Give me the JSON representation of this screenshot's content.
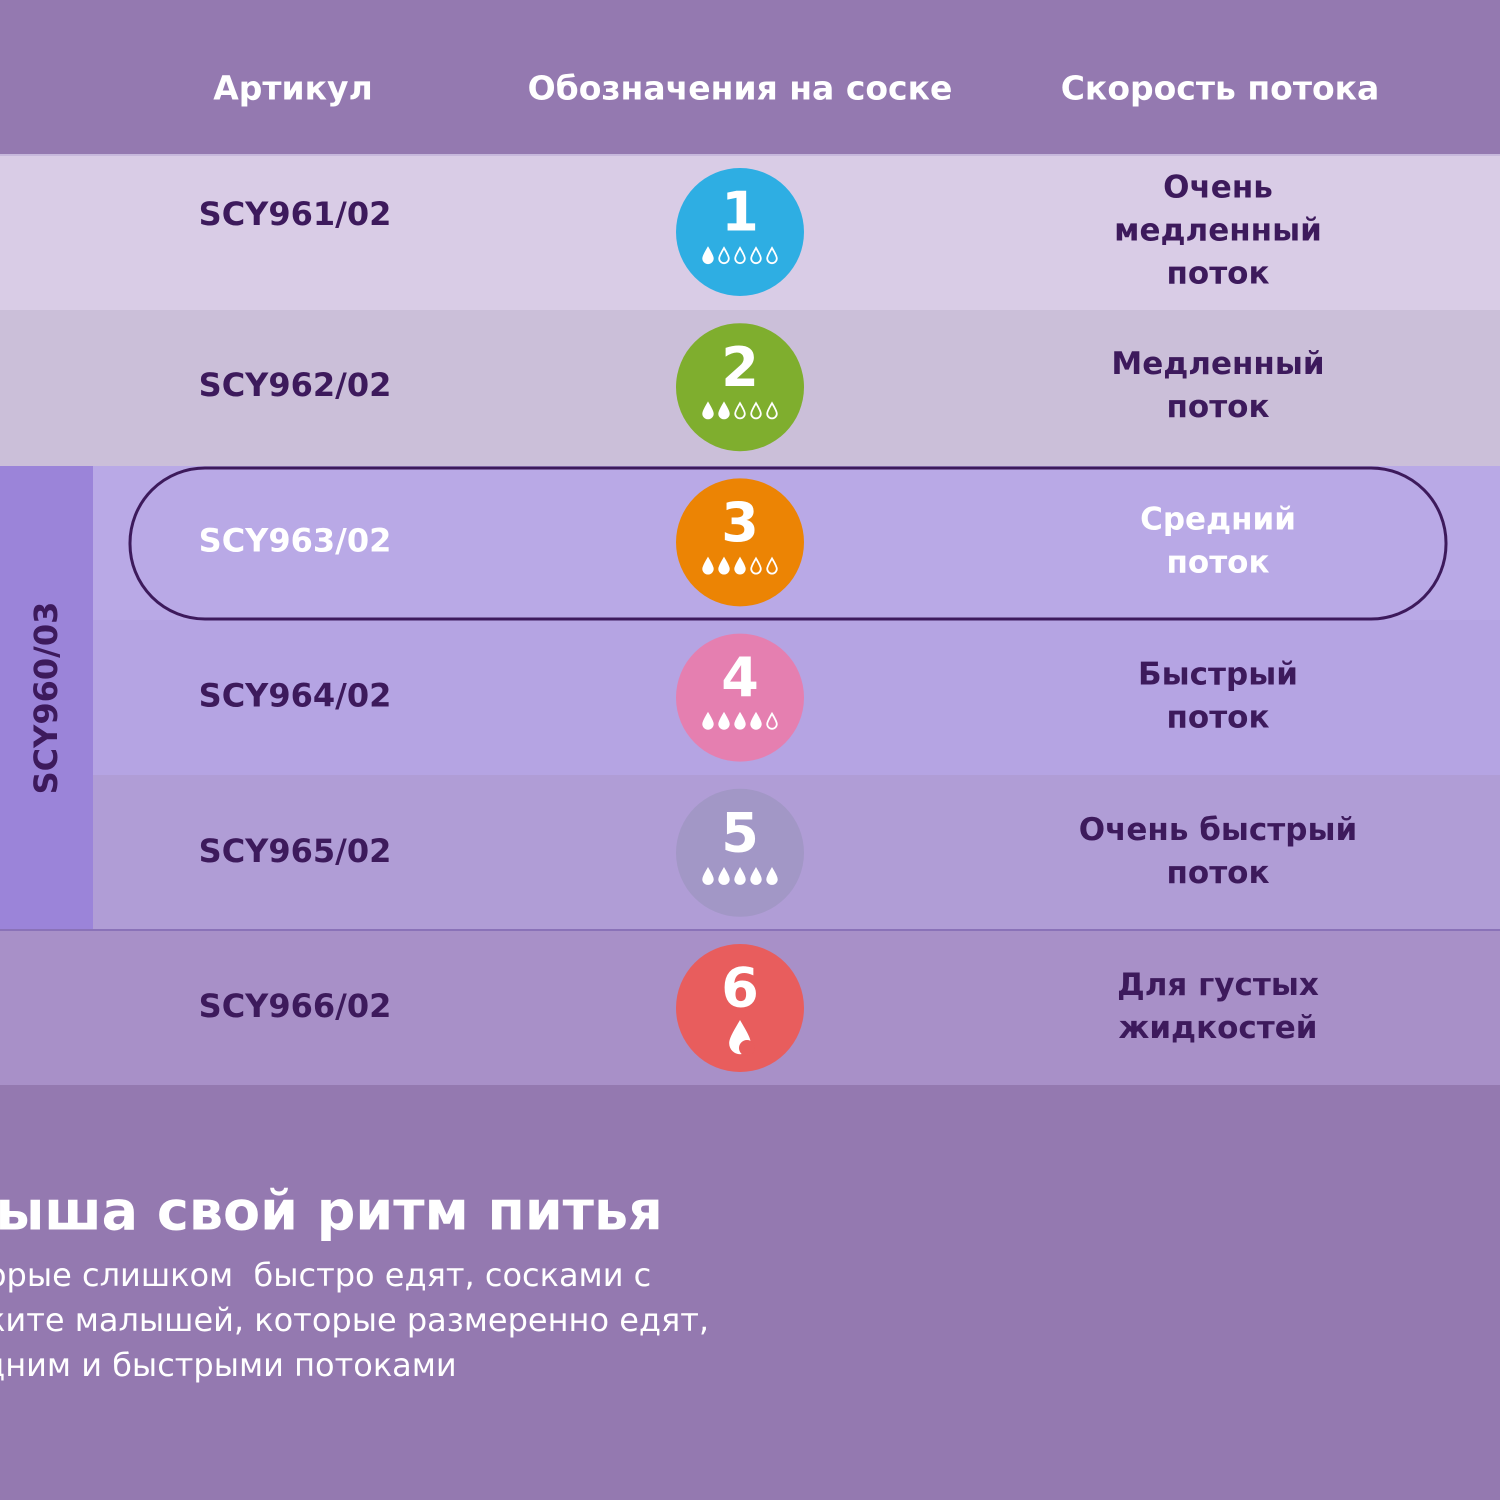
{
  "header": {
    "columns": [
      "Артикул",
      "Обозначения на соске",
      "Скорость потока"
    ]
  },
  "group_label": "SCY960/03",
  "rows": [
    {
      "article": "SCY961/02",
      "number": "1",
      "color": "#2eaee3",
      "filled_drops": 1,
      "speed": [
        "Очень",
        "медленный",
        "поток"
      ]
    },
    {
      "article": "SCY962/02",
      "number": "2",
      "color": "#7fae2e",
      "filled_drops": 2,
      "speed": [
        "Медленный",
        "поток"
      ]
    },
    {
      "article": "SCY963/02",
      "number": "3",
      "color": "#ec8404",
      "filled_drops": 3,
      "speed": [
        "Средний",
        "поток"
      ],
      "highlighted": true
    },
    {
      "article": "SCY964/02",
      "number": "4",
      "color": "#e57fb0",
      "filled_drops": 4,
      "speed": [
        "Быстрый",
        "поток"
      ]
    },
    {
      "article": "SCY965/02",
      "number": "5",
      "color": "#a297c6",
      "filled_drops": 5,
      "speed": [
        "Очень быстрый",
        "поток"
      ]
    },
    {
      "article": "SCY966/02",
      "number": "6",
      "color": "#e85d5d",
      "speed": [
        "Для густых",
        "жидкостей"
      ]
    }
  ],
  "footer": {
    "title": "У каждого малыша свой ритм питья",
    "text": [
      "Замедляйте малышей, которые слишком  быстро едят, сосками с",
      "меньшими потоками. Поддержите малышей, которые размеренно едят,",
      "сосками со средним и быстрыми потоками"
    ]
  }
}
